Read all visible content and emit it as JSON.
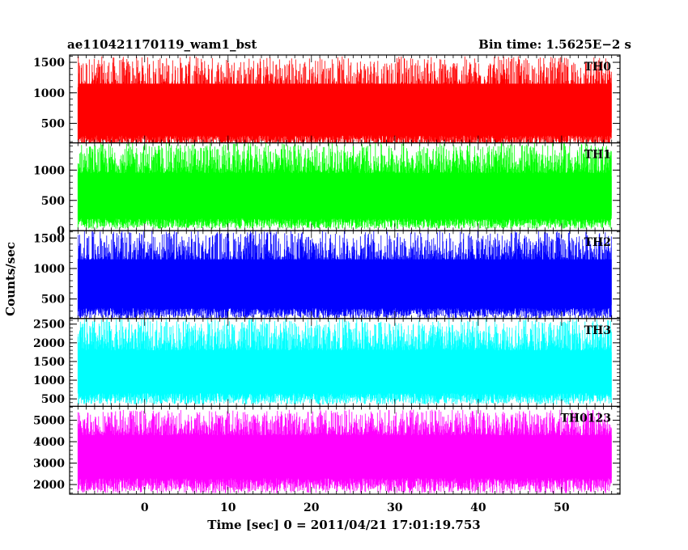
{
  "header": {
    "title": "ae110421170119_wam1_bst",
    "bin_time": "Bin time: 1.5625E−2 s"
  },
  "chart_data": {
    "type": "line",
    "xlabel": "Time [sec] 0 = 2011/04/21 17:01:19.753",
    "ylabel": "Counts/sec",
    "xlim": [
      -9,
      57
    ],
    "data_range": [
      -8,
      56
    ],
    "xticks": [
      0,
      10,
      20,
      30,
      40,
      50
    ],
    "xtick_labels": [
      "0",
      "10",
      "20",
      "30",
      "40",
      "50"
    ],
    "panels": [
      {
        "name": "TH0",
        "color": "#ff0000",
        "ylim": [
          180,
          1620
        ],
        "yticks": [
          500,
          1000,
          1500
        ],
        "ytick_labels": [
          "500",
          "1000",
          "1500"
        ],
        "band_low": [
          100,
          300
        ],
        "band_high": [
          1000,
          1600
        ],
        "core": [
          350,
          1150
        ]
      },
      {
        "name": "TH1",
        "color": "#00ff00",
        "ylim": [
          0,
          1450
        ],
        "yticks": [
          0,
          500,
          1000
        ],
        "ytick_labels": [
          "0",
          "500",
          "1000"
        ],
        "band_low": [
          30,
          200
        ],
        "band_high": [
          950,
          1450
        ],
        "core": [
          250,
          900
        ]
      },
      {
        "name": "TH2",
        "color": "#0000ff",
        "ylim": [
          180,
          1620
        ],
        "yticks": [
          500,
          1000,
          1500
        ],
        "ytick_labels": [
          "500",
          "1000",
          "1500"
        ],
        "band_low": [
          180,
          350
        ],
        "band_high": [
          1100,
          1620
        ],
        "core": [
          400,
          1150
        ]
      },
      {
        "name": "TH3",
        "color": "#00ffff",
        "ylim": [
          300,
          2650
        ],
        "yticks": [
          500,
          1000,
          1500,
          2000,
          2500
        ],
        "ytick_labels": [
          "500",
          "1000",
          "1500",
          "2000",
          "2500"
        ],
        "band_low": [
          350,
          650
        ],
        "band_high": [
          1800,
          2650
        ],
        "core": [
          700,
          1750
        ]
      },
      {
        "name": "TH0123",
        "color": "#ff00ff",
        "ylim": [
          1550,
          5650
        ],
        "yticks": [
          2000,
          3000,
          4000,
          5000
        ],
        "ytick_labels": [
          "2000",
          "3000",
          "4000",
          "5000"
        ],
        "band_low": [
          1600,
          2300
        ],
        "band_high": [
          4300,
          5500
        ],
        "core": [
          2300,
          4300
        ]
      }
    ]
  }
}
